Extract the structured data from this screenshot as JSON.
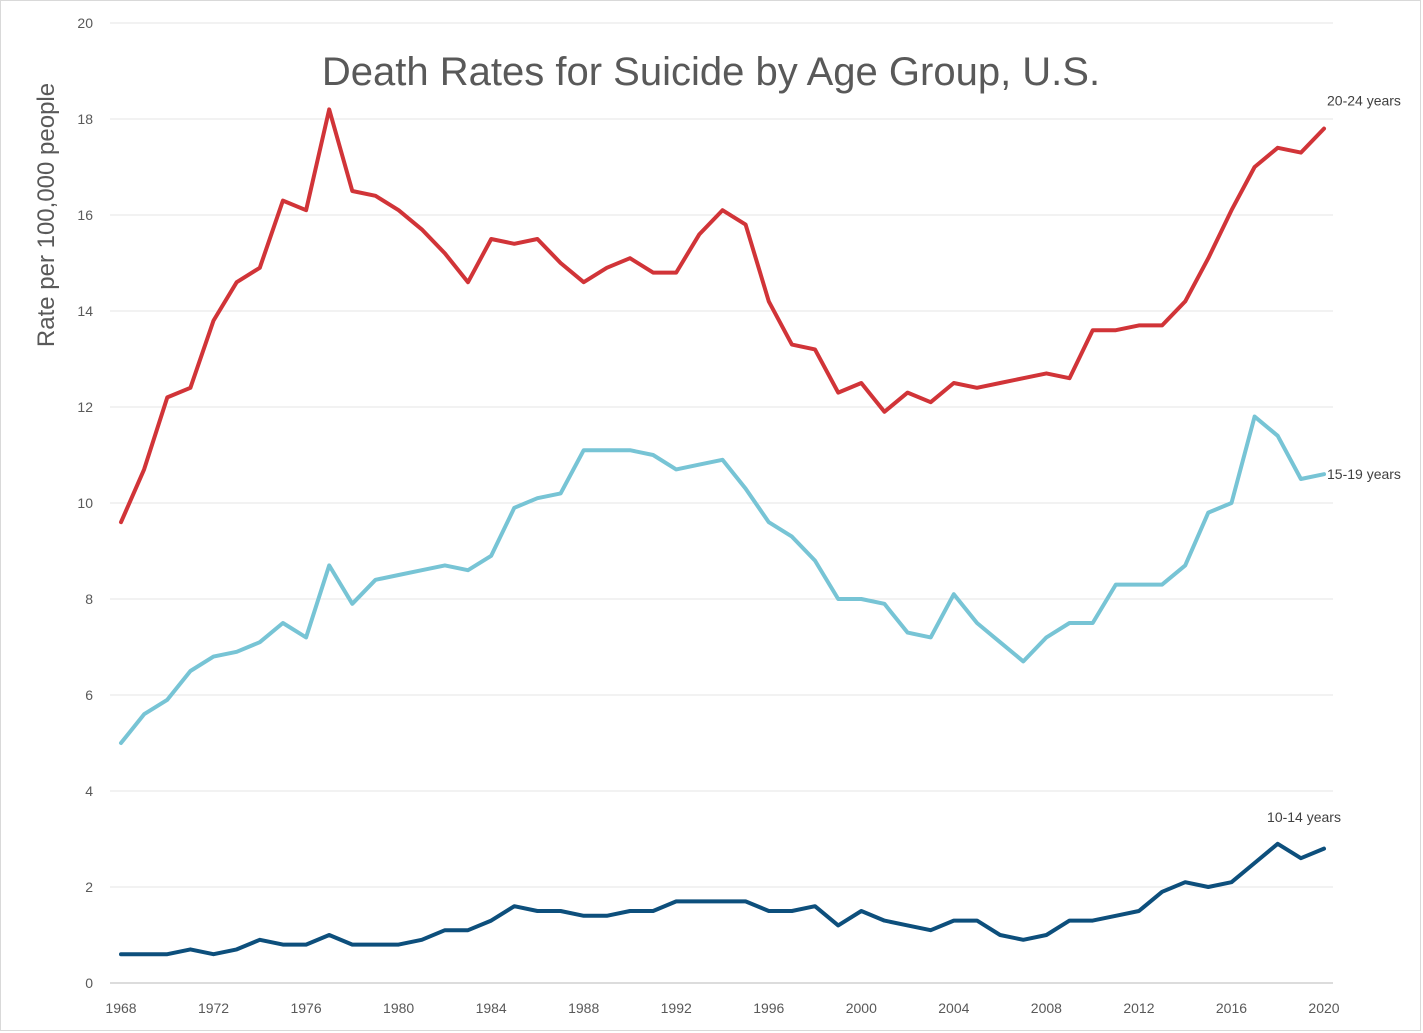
{
  "chart_data": {
    "type": "line",
    "title": "Death Rates for Suicide by Age Group, U.S.",
    "xlabel": "",
    "ylabel": "Rate per 100,000 people",
    "xlim": [
      1968,
      2020
    ],
    "ylim": [
      0,
      20
    ],
    "yticks": [
      0,
      2,
      4,
      6,
      8,
      10,
      12,
      14,
      16,
      18,
      20
    ],
    "xticks": [
      1968,
      1972,
      1976,
      1980,
      1984,
      1988,
      1992,
      1996,
      2000,
      2004,
      2008,
      2012,
      2016,
      2020
    ],
    "grid": true,
    "legend": "direct labels at line ends",
    "x": [
      1968,
      1969,
      1970,
      1971,
      1972,
      1973,
      1974,
      1975,
      1976,
      1977,
      1978,
      1979,
      1980,
      1981,
      1982,
      1983,
      1984,
      1985,
      1986,
      1987,
      1988,
      1989,
      1990,
      1991,
      1992,
      1993,
      1994,
      1995,
      1996,
      1997,
      1998,
      1999,
      2000,
      2001,
      2002,
      2003,
      2004,
      2005,
      2006,
      2007,
      2008,
      2009,
      2010,
      2011,
      2012,
      2013,
      2014,
      2015,
      2016,
      2017,
      2018,
      2019,
      2020
    ],
    "series": [
      {
        "name": "20-24 years",
        "color": "#d13438",
        "label_position": "right",
        "values": [
          9.6,
          10.7,
          12.2,
          12.4,
          13.8,
          14.6,
          14.9,
          16.3,
          16.1,
          18.2,
          16.5,
          16.4,
          16.1,
          15.7,
          15.2,
          14.6,
          15.5,
          15.4,
          15.5,
          15.0,
          14.6,
          14.9,
          15.1,
          14.8,
          14.8,
          15.6,
          16.1,
          15.8,
          14.2,
          13.3,
          13.2,
          12.3,
          12.5,
          11.9,
          12.3,
          12.1,
          12.5,
          12.4,
          12.5,
          12.6,
          12.7,
          12.6,
          13.6,
          13.6,
          13.7,
          13.7,
          14.2,
          15.1,
          16.1,
          17.0,
          17.4,
          17.3,
          17.8
        ]
      },
      {
        "name": "15-19 years",
        "color": "#77c4d5",
        "label_position": "right",
        "values": [
          5.0,
          5.6,
          5.9,
          6.5,
          6.8,
          6.9,
          7.1,
          7.5,
          7.2,
          8.7,
          7.9,
          8.4,
          8.5,
          8.6,
          8.7,
          8.6,
          8.9,
          9.9,
          10.1,
          10.2,
          11.1,
          11.1,
          11.1,
          11.0,
          10.7,
          10.8,
          10.9,
          10.3,
          9.6,
          9.3,
          8.8,
          8.0,
          8.0,
          7.9,
          7.3,
          7.2,
          8.1,
          7.5,
          7.1,
          6.7,
          7.2,
          7.5,
          7.5,
          8.3,
          8.3,
          8.3,
          8.7,
          9.8,
          10.0,
          11.8,
          11.4,
          10.5,
          10.6
        ]
      },
      {
        "name": "10-14 years",
        "color": "#0d4f7c",
        "label_position": "above",
        "values": [
          0.6,
          0.6,
          0.6,
          0.7,
          0.6,
          0.7,
          0.9,
          0.8,
          0.8,
          1.0,
          0.8,
          0.8,
          0.8,
          0.9,
          1.1,
          1.1,
          1.3,
          1.6,
          1.5,
          1.5,
          1.4,
          1.4,
          1.5,
          1.5,
          1.7,
          1.7,
          1.7,
          1.7,
          1.5,
          1.5,
          1.6,
          1.2,
          1.5,
          1.3,
          1.2,
          1.1,
          1.3,
          1.3,
          1.0,
          0.9,
          1.0,
          1.3,
          1.3,
          1.4,
          1.5,
          1.9,
          2.1,
          2.0,
          2.1,
          2.5,
          2.9,
          2.6,
          2.8
        ]
      }
    ]
  }
}
